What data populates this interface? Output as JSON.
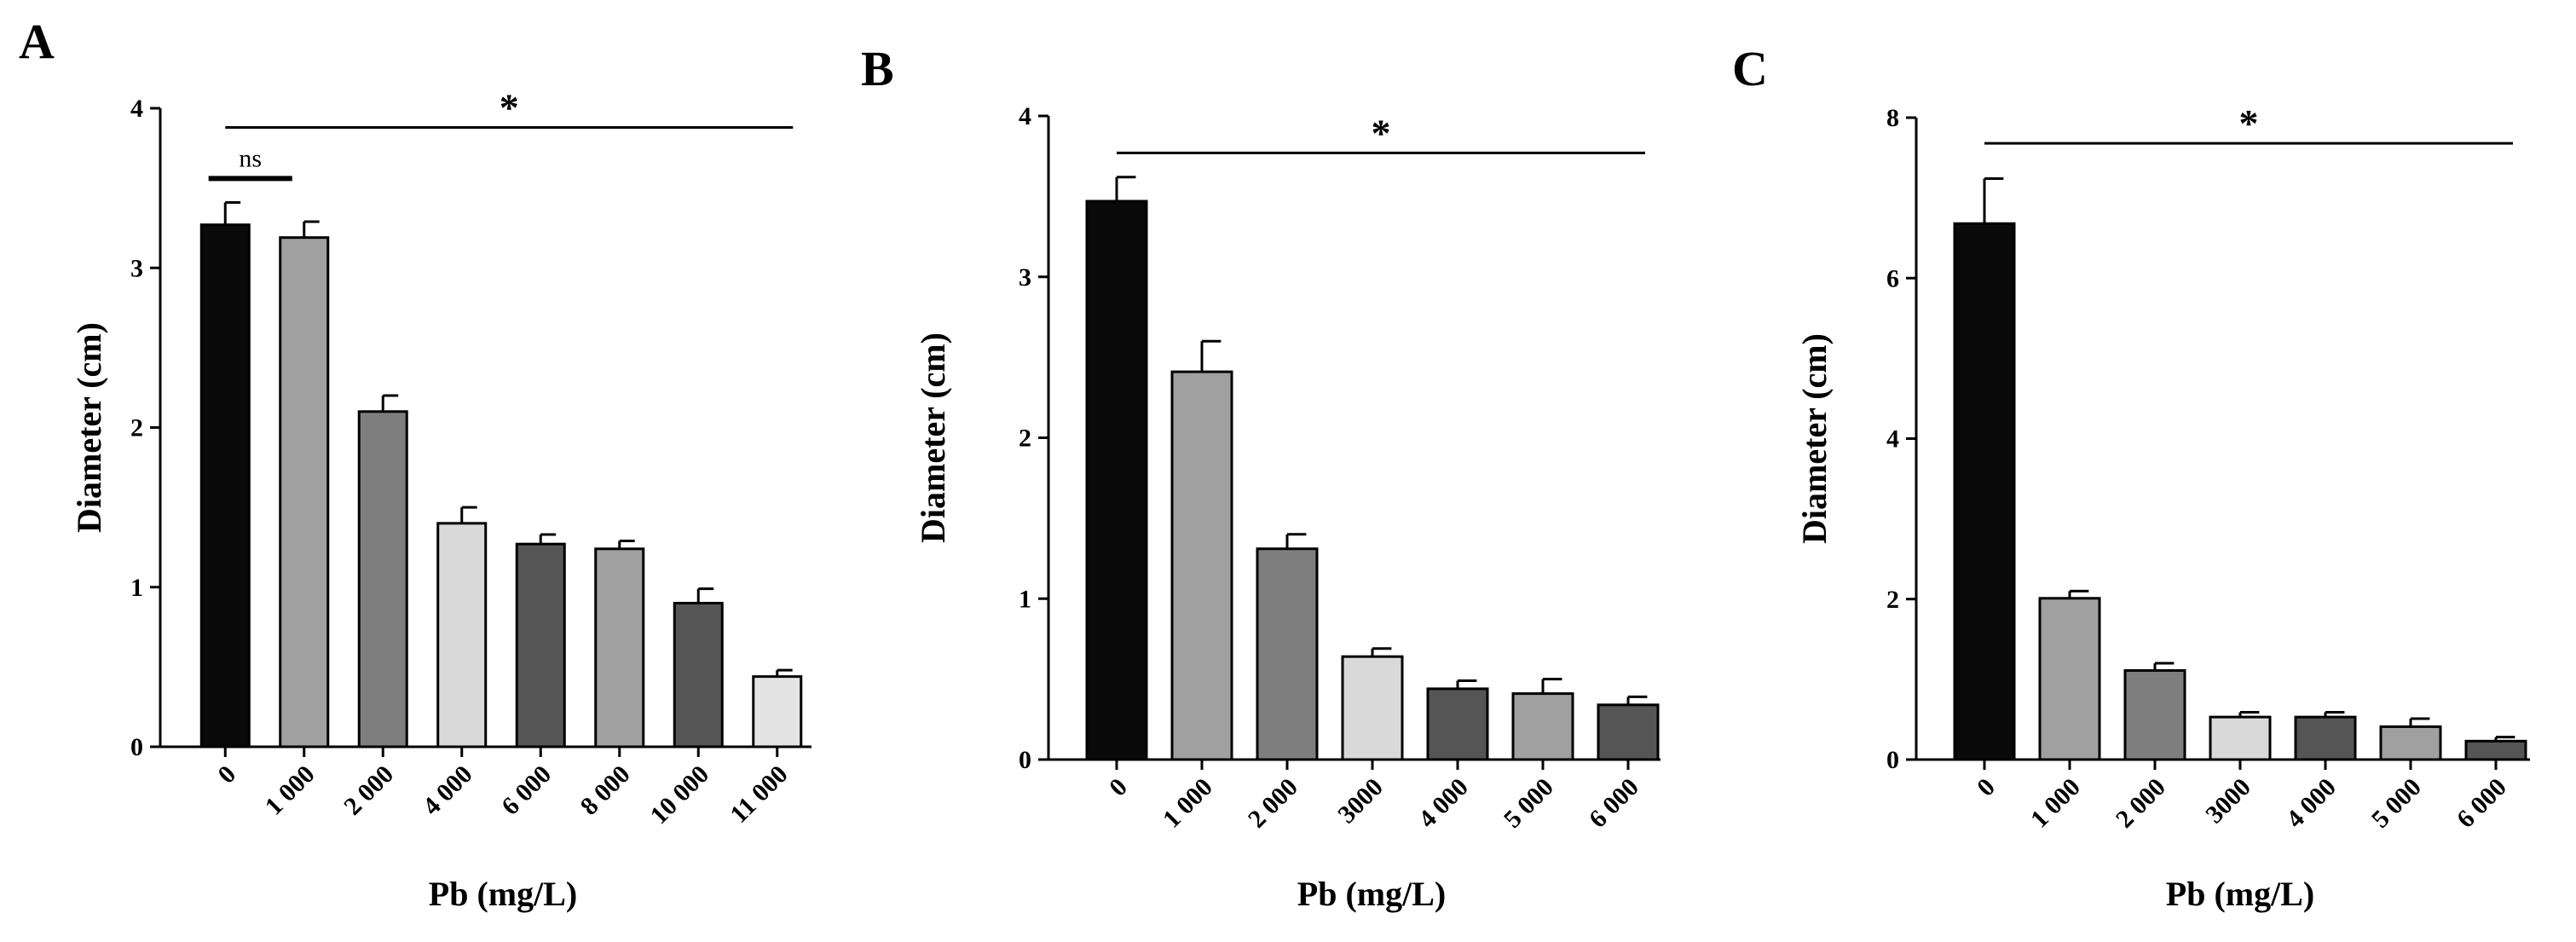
{
  "chart_data": [
    {
      "type": "bar",
      "panel": "A",
      "title": "",
      "xlabel": "Pb (mg/L)",
      "ylabel": "Diameter (cm)",
      "ylim": [
        0,
        4
      ],
      "yticks": [
        0,
        1,
        2,
        3,
        4
      ],
      "categories": [
        "0",
        "1 000",
        "2 000",
        "4 000",
        "6 000",
        "8 000",
        "10 000",
        "11 000"
      ],
      "values": [
        3.27,
        3.19,
        2.1,
        1.4,
        1.27,
        1.24,
        0.9,
        0.44
      ],
      "errors": [
        0.14,
        0.1,
        0.1,
        0.1,
        0.06,
        0.05,
        0.09,
        0.04
      ],
      "bar_colors": [
        "#0a0a0a",
        "#a0a0a0",
        "#7e7e7e",
        "#d9d9d9",
        "#555555",
        "#a0a0a0",
        "#555555",
        "#e3e3e3"
      ],
      "annotations": [
        {
          "label": "*",
          "from": "0",
          "to": "11 000",
          "y": 3.88
        },
        {
          "label": "ns",
          "from": "0",
          "to": "1 000",
          "y": 3.56
        }
      ],
      "grid": false,
      "legend": "none"
    },
    {
      "type": "bar",
      "panel": "B",
      "title": "",
      "xlabel": "Pb (mg/L)",
      "ylabel": "Diameter (cm)",
      "ylim": [
        0,
        4
      ],
      "yticks": [
        0,
        1,
        2,
        3,
        4
      ],
      "categories": [
        "0",
        "1 000",
        "2 000",
        "3000",
        "4 000",
        "5 000",
        "6 000"
      ],
      "values": [
        3.47,
        2.41,
        1.31,
        0.64,
        0.44,
        0.41,
        0.34
      ],
      "errors": [
        0.15,
        0.19,
        0.09,
        0.05,
        0.05,
        0.09,
        0.05
      ],
      "bar_colors": [
        "#0a0a0a",
        "#a0a0a0",
        "#7e7e7e",
        "#d9d9d9",
        "#555555",
        "#a0a0a0",
        "#555555"
      ],
      "annotations": [
        {
          "label": "*",
          "from": "0",
          "to": "6 000",
          "y": 3.77
        }
      ],
      "grid": false,
      "legend": "none"
    },
    {
      "type": "bar",
      "panel": "C",
      "title": "",
      "xlabel": "Pb (mg/L)",
      "ylabel": "Diameter (cm)",
      "ylim": [
        0,
        8
      ],
      "yticks": [
        0,
        2,
        4,
        6,
        8
      ],
      "categories": [
        "0",
        "1 000",
        "2 000",
        "3000",
        "4 000",
        "5 000",
        "6 000"
      ],
      "values": [
        6.68,
        2.01,
        1.11,
        0.53,
        0.53,
        0.41,
        0.23
      ],
      "errors": [
        0.56,
        0.09,
        0.09,
        0.06,
        0.06,
        0.1,
        0.05
      ],
      "bar_colors": [
        "#0a0a0a",
        "#a0a0a0",
        "#7e7e7e",
        "#d9d9d9",
        "#555555",
        "#a0a0a0",
        "#555555"
      ],
      "annotations": [
        {
          "label": "*",
          "from": "0",
          "to": "6 000",
          "y": 7.68
        }
      ],
      "grid": false,
      "legend": "none"
    }
  ]
}
